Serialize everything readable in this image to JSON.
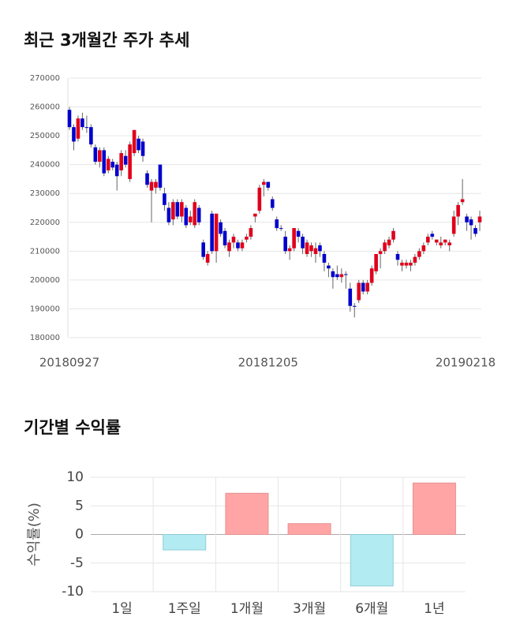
{
  "chart_data": [
    {
      "type": "candlestick",
      "title": "최근 3개월간 주가 추세",
      "categories": [
        "20180927",
        null,
        null,
        null,
        null,
        null,
        null,
        null,
        null,
        null,
        null,
        null,
        null,
        null,
        null,
        null,
        null,
        null,
        null,
        null,
        null,
        null,
        null,
        null,
        null,
        null,
        null,
        null,
        null,
        null,
        null,
        null,
        null,
        null,
        null,
        null,
        null,
        null,
        null,
        null,
        null,
        null,
        null,
        null,
        null,
        null,
        "20181205",
        null,
        null,
        null,
        null,
        null,
        null,
        null,
        null,
        null,
        null,
        null,
        null,
        null,
        null,
        null,
        null,
        null,
        null,
        null,
        null,
        null,
        null,
        null,
        null,
        null,
        null,
        null,
        null,
        null,
        null,
        null,
        null,
        null,
        null,
        null,
        null,
        null,
        null,
        null,
        null,
        null,
        null,
        null,
        null,
        null,
        null,
        null,
        null,
        "20190218"
      ],
      "open": [
        259000,
        253000,
        249000,
        256000,
        253000,
        253000,
        246000,
        241000,
        245000,
        238000,
        241000,
        240000,
        238000,
        243000,
        235000,
        244000,
        249000,
        248000,
        237000,
        231000,
        232000,
        240000,
        230000,
        225000,
        221000,
        227000,
        222000,
        225000,
        220000,
        219000,
        225000,
        213000,
        206000,
        223000,
        210000,
        220000,
        217000,
        210000,
        213000,
        213000,
        211000,
        214000,
        215000,
        222000,
        224000,
        233000,
        234000,
        228000,
        221000,
        218000,
        215000,
        210000,
        211000,
        217000,
        215000,
        209000,
        210000,
        209000,
        212000,
        209000,
        205000,
        203000,
        202000,
        201000,
        202000,
        197000,
        191000,
        193000,
        199000,
        196000,
        199000,
        203000,
        209000,
        210000,
        212000,
        214000,
        209000,
        205000,
        205000,
        205000,
        206000,
        208000,
        210000,
        213000,
        216000,
        213000,
        212000,
        213000,
        212000,
        216000,
        222000,
        227000,
        222000,
        221000,
        218000,
        220000
      ],
      "high": [
        260000,
        254000,
        257000,
        258000,
        257000,
        254000,
        247000,
        246000,
        246000,
        243000,
        242000,
        241000,
        245000,
        245000,
        248000,
        252000,
        250000,
        249000,
        238000,
        235000,
        235000,
        240000,
        232000,
        227000,
        228000,
        228000,
        228000,
        226000,
        224000,
        228000,
        226000,
        214000,
        210000,
        224000,
        223000,
        221000,
        218000,
        214000,
        216000,
        214000,
        214000,
        216000,
        219000,
        223000,
        233000,
        235000,
        234000,
        229000,
        222000,
        219000,
        217000,
        212000,
        218000,
        218000,
        216000,
        214000,
        213000,
        213000,
        213000,
        210000,
        206000,
        204000,
        205000,
        204000,
        203000,
        199000,
        192000,
        200000,
        200000,
        200000,
        205000,
        209000,
        211000,
        214000,
        215000,
        218000,
        210000,
        207000,
        207000,
        207000,
        209000,
        211000,
        213000,
        216000,
        217000,
        214000,
        215000,
        214000,
        214000,
        224000,
        227000,
        235000,
        223000,
        222000,
        219000,
        224000
      ],
      "low": [
        252000,
        245000,
        248000,
        252000,
        251000,
        246000,
        240000,
        239000,
        236000,
        237000,
        238000,
        231000,
        236000,
        239000,
        234000,
        243000,
        244000,
        241000,
        232000,
        220000,
        230000,
        231000,
        224000,
        219000,
        219000,
        221000,
        220000,
        218000,
        219000,
        218000,
        219000,
        207000,
        205000,
        209000,
        206000,
        215000,
        211000,
        208000,
        211000,
        210000,
        210000,
        213000,
        214000,
        220000,
        223000,
        229000,
        231000,
        224000,
        217000,
        217000,
        209000,
        207000,
        210000,
        213000,
        209000,
        208000,
        208000,
        206000,
        208000,
        203000,
        201000,
        197000,
        200000,
        199000,
        197000,
        189000,
        187000,
        192000,
        195000,
        195000,
        198000,
        202000,
        204000,
        209000,
        211000,
        213000,
        205000,
        203000,
        204000,
        203000,
        205000,
        207000,
        209000,
        212000,
        214000,
        212000,
        211000,
        212000,
        210000,
        215000,
        219000,
        226000,
        217000,
        214000,
        215000,
        217000
      ],
      "close": [
        253000,
        248000,
        256000,
        253000,
        253000,
        247000,
        241000,
        245000,
        237000,
        242000,
        239000,
        236000,
        244000,
        240000,
        247000,
        252000,
        245000,
        243000,
        233000,
        234000,
        234000,
        232000,
        226000,
        220000,
        227000,
        222000,
        227000,
        219000,
        222000,
        227000,
        220000,
        208000,
        209000,
        210000,
        223000,
        216000,
        212000,
        213000,
        215000,
        211000,
        213000,
        215000,
        218000,
        223000,
        232000,
        234000,
        232000,
        225000,
        218000,
        218000,
        210000,
        211000,
        218000,
        215000,
        211000,
        213000,
        212000,
        211000,
        210000,
        206000,
        204000,
        201000,
        201000,
        202000,
        202000,
        191000,
        191000,
        199000,
        196000,
        199000,
        204000,
        209000,
        210000,
        213000,
        214000,
        217000,
        207000,
        206000,
        206000,
        206000,
        208000,
        210000,
        212000,
        215000,
        215000,
        214000,
        213000,
        214000,
        213000,
        222000,
        226000,
        228000,
        220000,
        219000,
        216000,
        222000
      ],
      "up_color": "#e0001b",
      "down_color": "#0000cc",
      "ylim": [
        180000,
        270000
      ],
      "yticks": [
        180000,
        190000,
        200000,
        210000,
        220000,
        230000,
        240000,
        250000,
        260000,
        270000
      ],
      "grid": true
    },
    {
      "type": "bar",
      "title": "기간별 수익률",
      "ylabel": "수익률(%)",
      "categories": [
        "1일",
        "1주일",
        "1개월",
        "3개월",
        "6개월",
        "1년"
      ],
      "values": [
        0,
        -2.7,
        7.2,
        1.9,
        -9,
        9
      ],
      "positive_color": "#ffa5a5",
      "negative_color": "#b3ebf2",
      "ylim": [
        -10,
        10
      ],
      "yticks": [
        -10,
        -5,
        0,
        5,
        10
      ],
      "grid": true
    }
  ]
}
